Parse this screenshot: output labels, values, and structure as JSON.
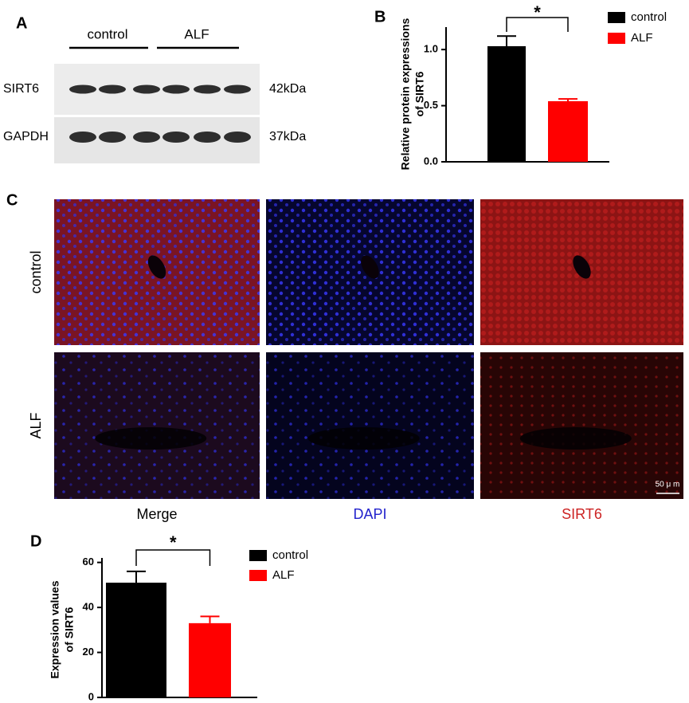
{
  "panel_a": {
    "label": "A",
    "groups": [
      "control",
      "ALF"
    ],
    "rows": [
      {
        "name": "SIRT6",
        "size": "42kDa"
      },
      {
        "name": "GAPDH",
        "size": "37kDa"
      }
    ]
  },
  "chart_data": [
    {
      "panel": "B",
      "type": "bar",
      "ylabel_lines": [
        "Relative protein expressions",
        "of SIRT6"
      ],
      "ylim": [
        0,
        1.2
      ],
      "yticks": [
        {
          "value": 0,
          "label": "0.0"
        },
        0.5,
        {
          "value": 1,
          "label": "1.0"
        }
      ],
      "significance": "*",
      "series": [
        {
          "name": "control",
          "color": "#000000",
          "values": [
            1.03
          ],
          "errors": [
            0.09
          ]
        },
        {
          "name": "ALF",
          "color": "#ff0000",
          "values": [
            0.54
          ],
          "errors": [
            0.02
          ]
        }
      ]
    },
    {
      "panel": "D",
      "type": "bar",
      "ylabel_lines": [
        "Expression values",
        "of SIRT6"
      ],
      "ylim": [
        0,
        62
      ],
      "yticks": [
        0,
        20,
        40,
        60
      ],
      "significance": "*",
      "series": [
        {
          "name": "control",
          "color": "#000000",
          "values": [
            51
          ],
          "errors": [
            5
          ]
        },
        {
          "name": "ALF",
          "color": "#ff0000",
          "values": [
            33
          ],
          "errors": [
            3
          ]
        }
      ]
    }
  ],
  "panel_c": {
    "label": "C",
    "rows": [
      "control",
      "ALF"
    ],
    "columns": [
      {
        "name": "Merge",
        "color": "#000000"
      },
      {
        "name": "DAPI",
        "color": "#2222cc"
      },
      {
        "name": "SIRT6",
        "color": "#cc2222"
      }
    ],
    "scale_bar": "50 μ m"
  }
}
